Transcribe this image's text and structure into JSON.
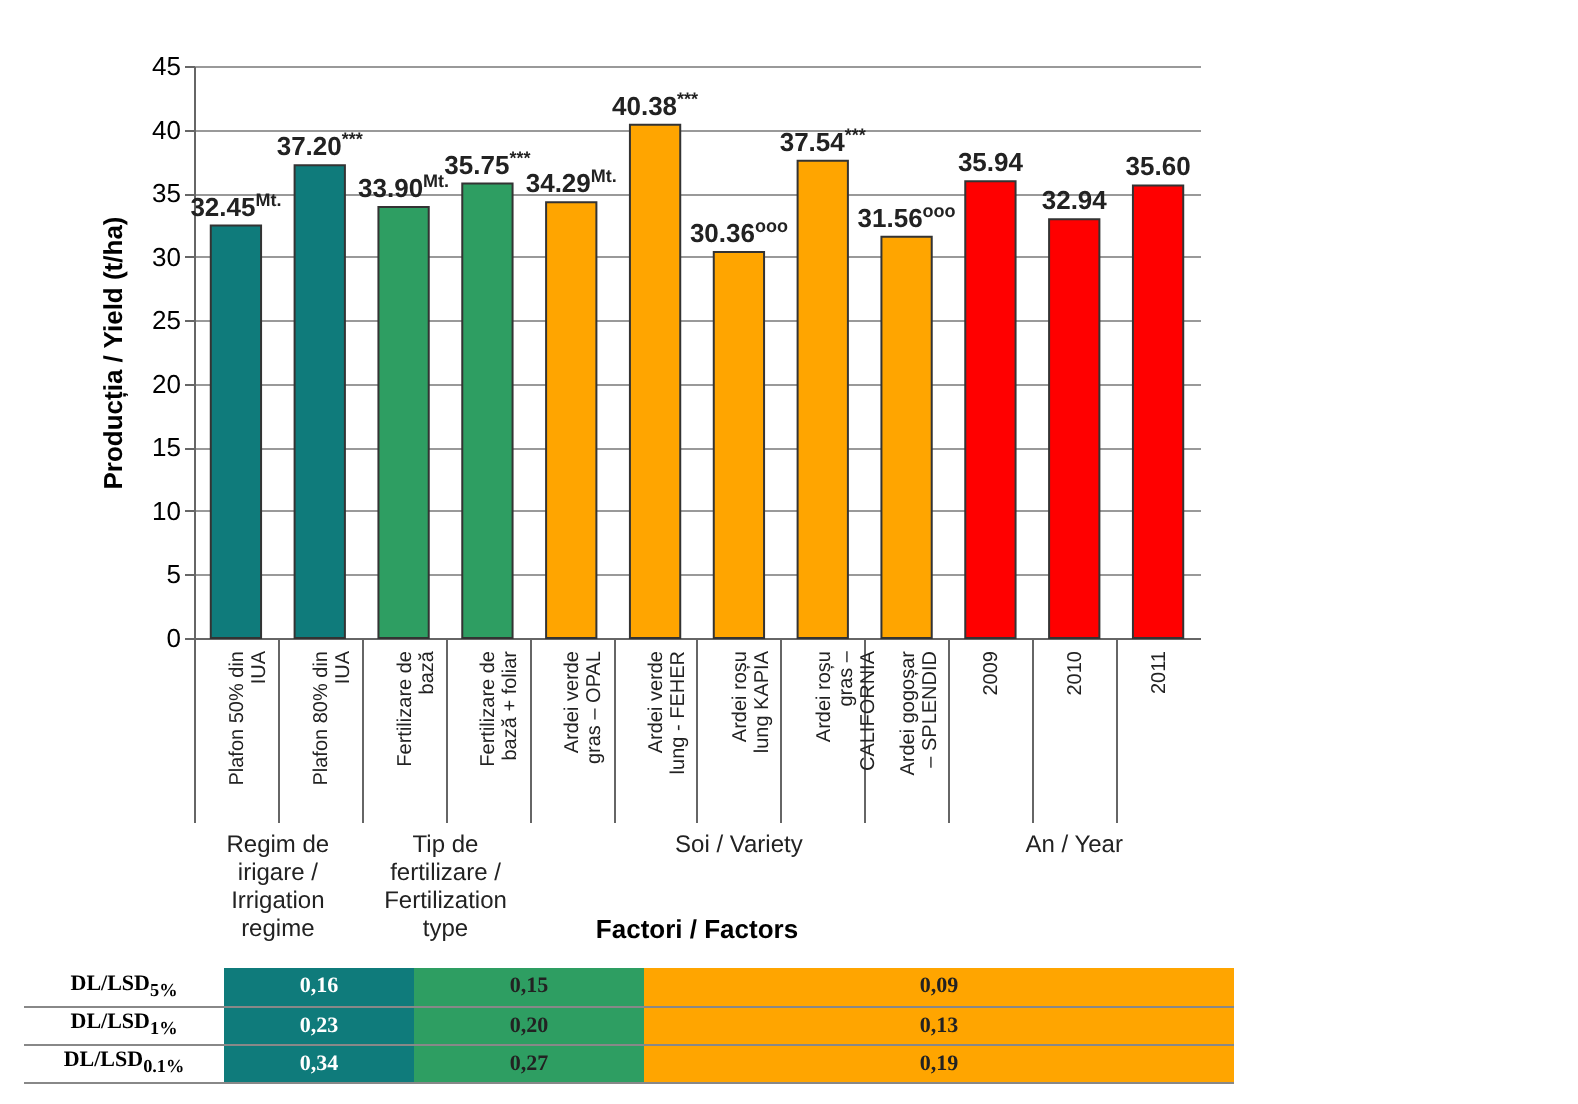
{
  "chart_data": {
    "type": "bar",
    "ylabel": "Producția / Yield (t/ha)",
    "xlabel": "Factori / Factors",
    "categories": [
      "Plafon 50% din IUA",
      "Plafon 80% din IUA",
      "Fertilizare de bază",
      "Fertilizare de bază + foliar",
      "Ardei verde gras – OPAL",
      "Ardei verde lung - FEHER",
      "Ardei roșu lung KAPIA",
      "Ardei roșu gras – CALIFORNIA",
      "Ardei gogoșar – SPLENDID",
      "2009",
      "2010",
      "2011"
    ],
    "values": [
      32.45,
      37.2,
      33.9,
      35.75,
      34.29,
      40.38,
      30.36,
      37.54,
      31.56,
      35.94,
      32.94,
      35.6
    ],
    "value_labels": [
      "32.45$^{Mt.}$",
      "37.20$^{***}$",
      "33.90$^{Mt.}$",
      "35.75$^{***}$",
      "34.29$^{Mt.}$",
      "40.38$^{***}$",
      "30.36$^{ooo}$",
      "37.54$^{***}$",
      "31.56$^{ooo}$",
      "35.94",
      "32.94",
      "35.60"
    ],
    "colors": [
      "#0f7b7b",
      "#0f7b7b",
      "#2e9e62",
      "#2e9e62",
      "#ffa500",
      "#ffa500",
      "#ffa500",
      "#ffa500",
      "#ffa500",
      "#ff0000",
      "#ff0000",
      "#ff0000"
    ],
    "ylim": [
      0,
      45
    ],
    "yticks": [
      0,
      5,
      10,
      15,
      20,
      25,
      30,
      35,
      40,
      45
    ],
    "grid": "y",
    "annotations": [
      "Regim de irigare / Irrigation regime",
      "Tip de fertilizare / Fertilization type",
      "Soi / Variety",
      "An / Year",
      "DL/LSD$_{5%}$",
      "0,16",
      "0,15",
      "0,09",
      "DL/LSD$_{1%}$",
      "0,23",
      "0,20",
      "0,13",
      "DL/LSD$_{0.1%}$",
      "0,34",
      "0,27",
      "0,19"
    ]
  }
}
